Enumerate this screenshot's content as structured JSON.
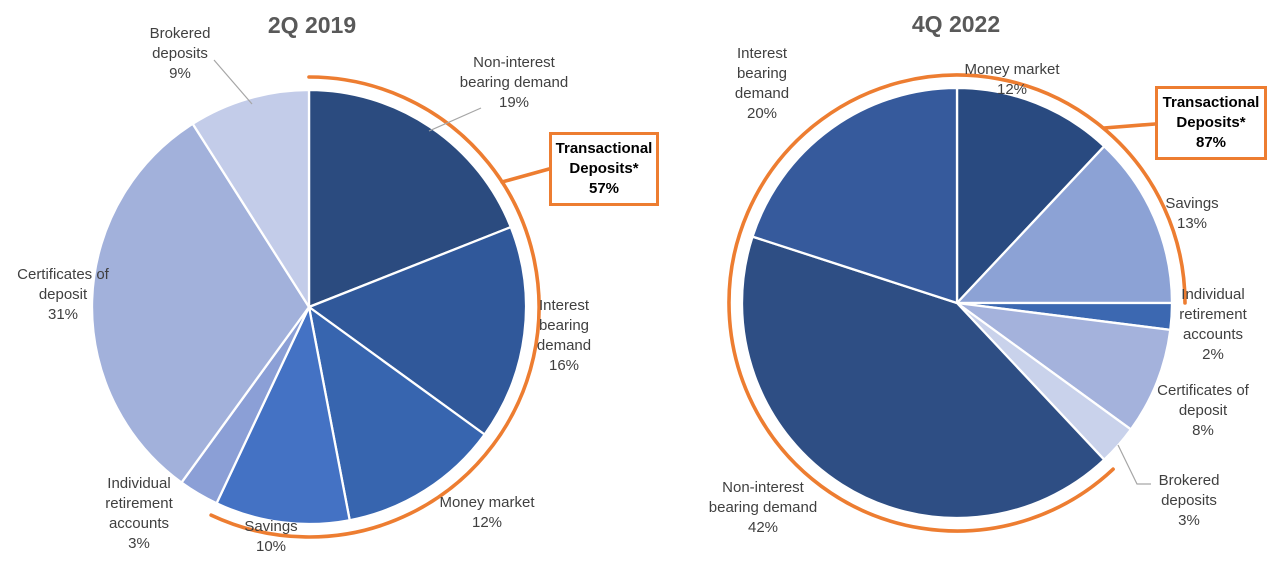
{
  "accent_color": "#ED7D31",
  "title_color": "#595959",
  "label_color": "#404040",
  "leader_line_color": "#A6A6A6",
  "slice_border_color": "#FFFFFF",
  "chart_data": [
    {
      "type": "pie",
      "title": "2Q 2019",
      "labels": [
        "Non-interest bearing demand",
        "Interest bearing demand",
        "Money market",
        "Savings",
        "Individual retirement accounts",
        "Certificates of deposit",
        "Brokered deposits"
      ],
      "values": [
        19,
        16,
        12,
        10,
        3,
        31,
        9
      ],
      "value_labels": [
        "19%",
        "16%",
        "12%",
        "10%",
        "3%",
        "31%",
        "9%"
      ],
      "colors": [
        "#2B4B7F",
        "#30589A",
        "#3765AF",
        "#4472C4",
        "#8B9FD6",
        "#A2B1DB",
        "#C3CCE9"
      ],
      "legend_position": "outside-labels",
      "callout": {
        "label": "Transactional Deposits*",
        "value": 57,
        "value_label": "57%",
        "covered_labels": [
          "Non-interest bearing demand",
          "Interest bearing demand",
          "Money market",
          "Savings"
        ]
      }
    },
    {
      "type": "pie",
      "title": "4Q 2022",
      "labels": [
        "Money market",
        "Savings",
        "Individual retirement accounts",
        "Certificates of deposit",
        "Brokered deposits",
        "Non-interest bearing demand",
        "Interest bearing demand"
      ],
      "values": [
        12,
        13,
        2,
        8,
        3,
        42,
        20
      ],
      "value_labels": [
        "12%",
        "13%",
        "2%",
        "8%",
        "3%",
        "42%",
        "20%"
      ],
      "colors": [
        "#294A80",
        "#8CA2D5",
        "#3C68B1",
        "#A4B2DC",
        "#C9D2EB",
        "#2E4E84",
        "#365A9C"
      ],
      "legend_position": "outside-labels",
      "callout": {
        "label": "Transactional Deposits*",
        "value": 87,
        "value_label": "87%",
        "covered_labels": [
          "Non-interest bearing demand",
          "Interest bearing demand",
          "Money market",
          "Savings"
        ]
      }
    }
  ]
}
